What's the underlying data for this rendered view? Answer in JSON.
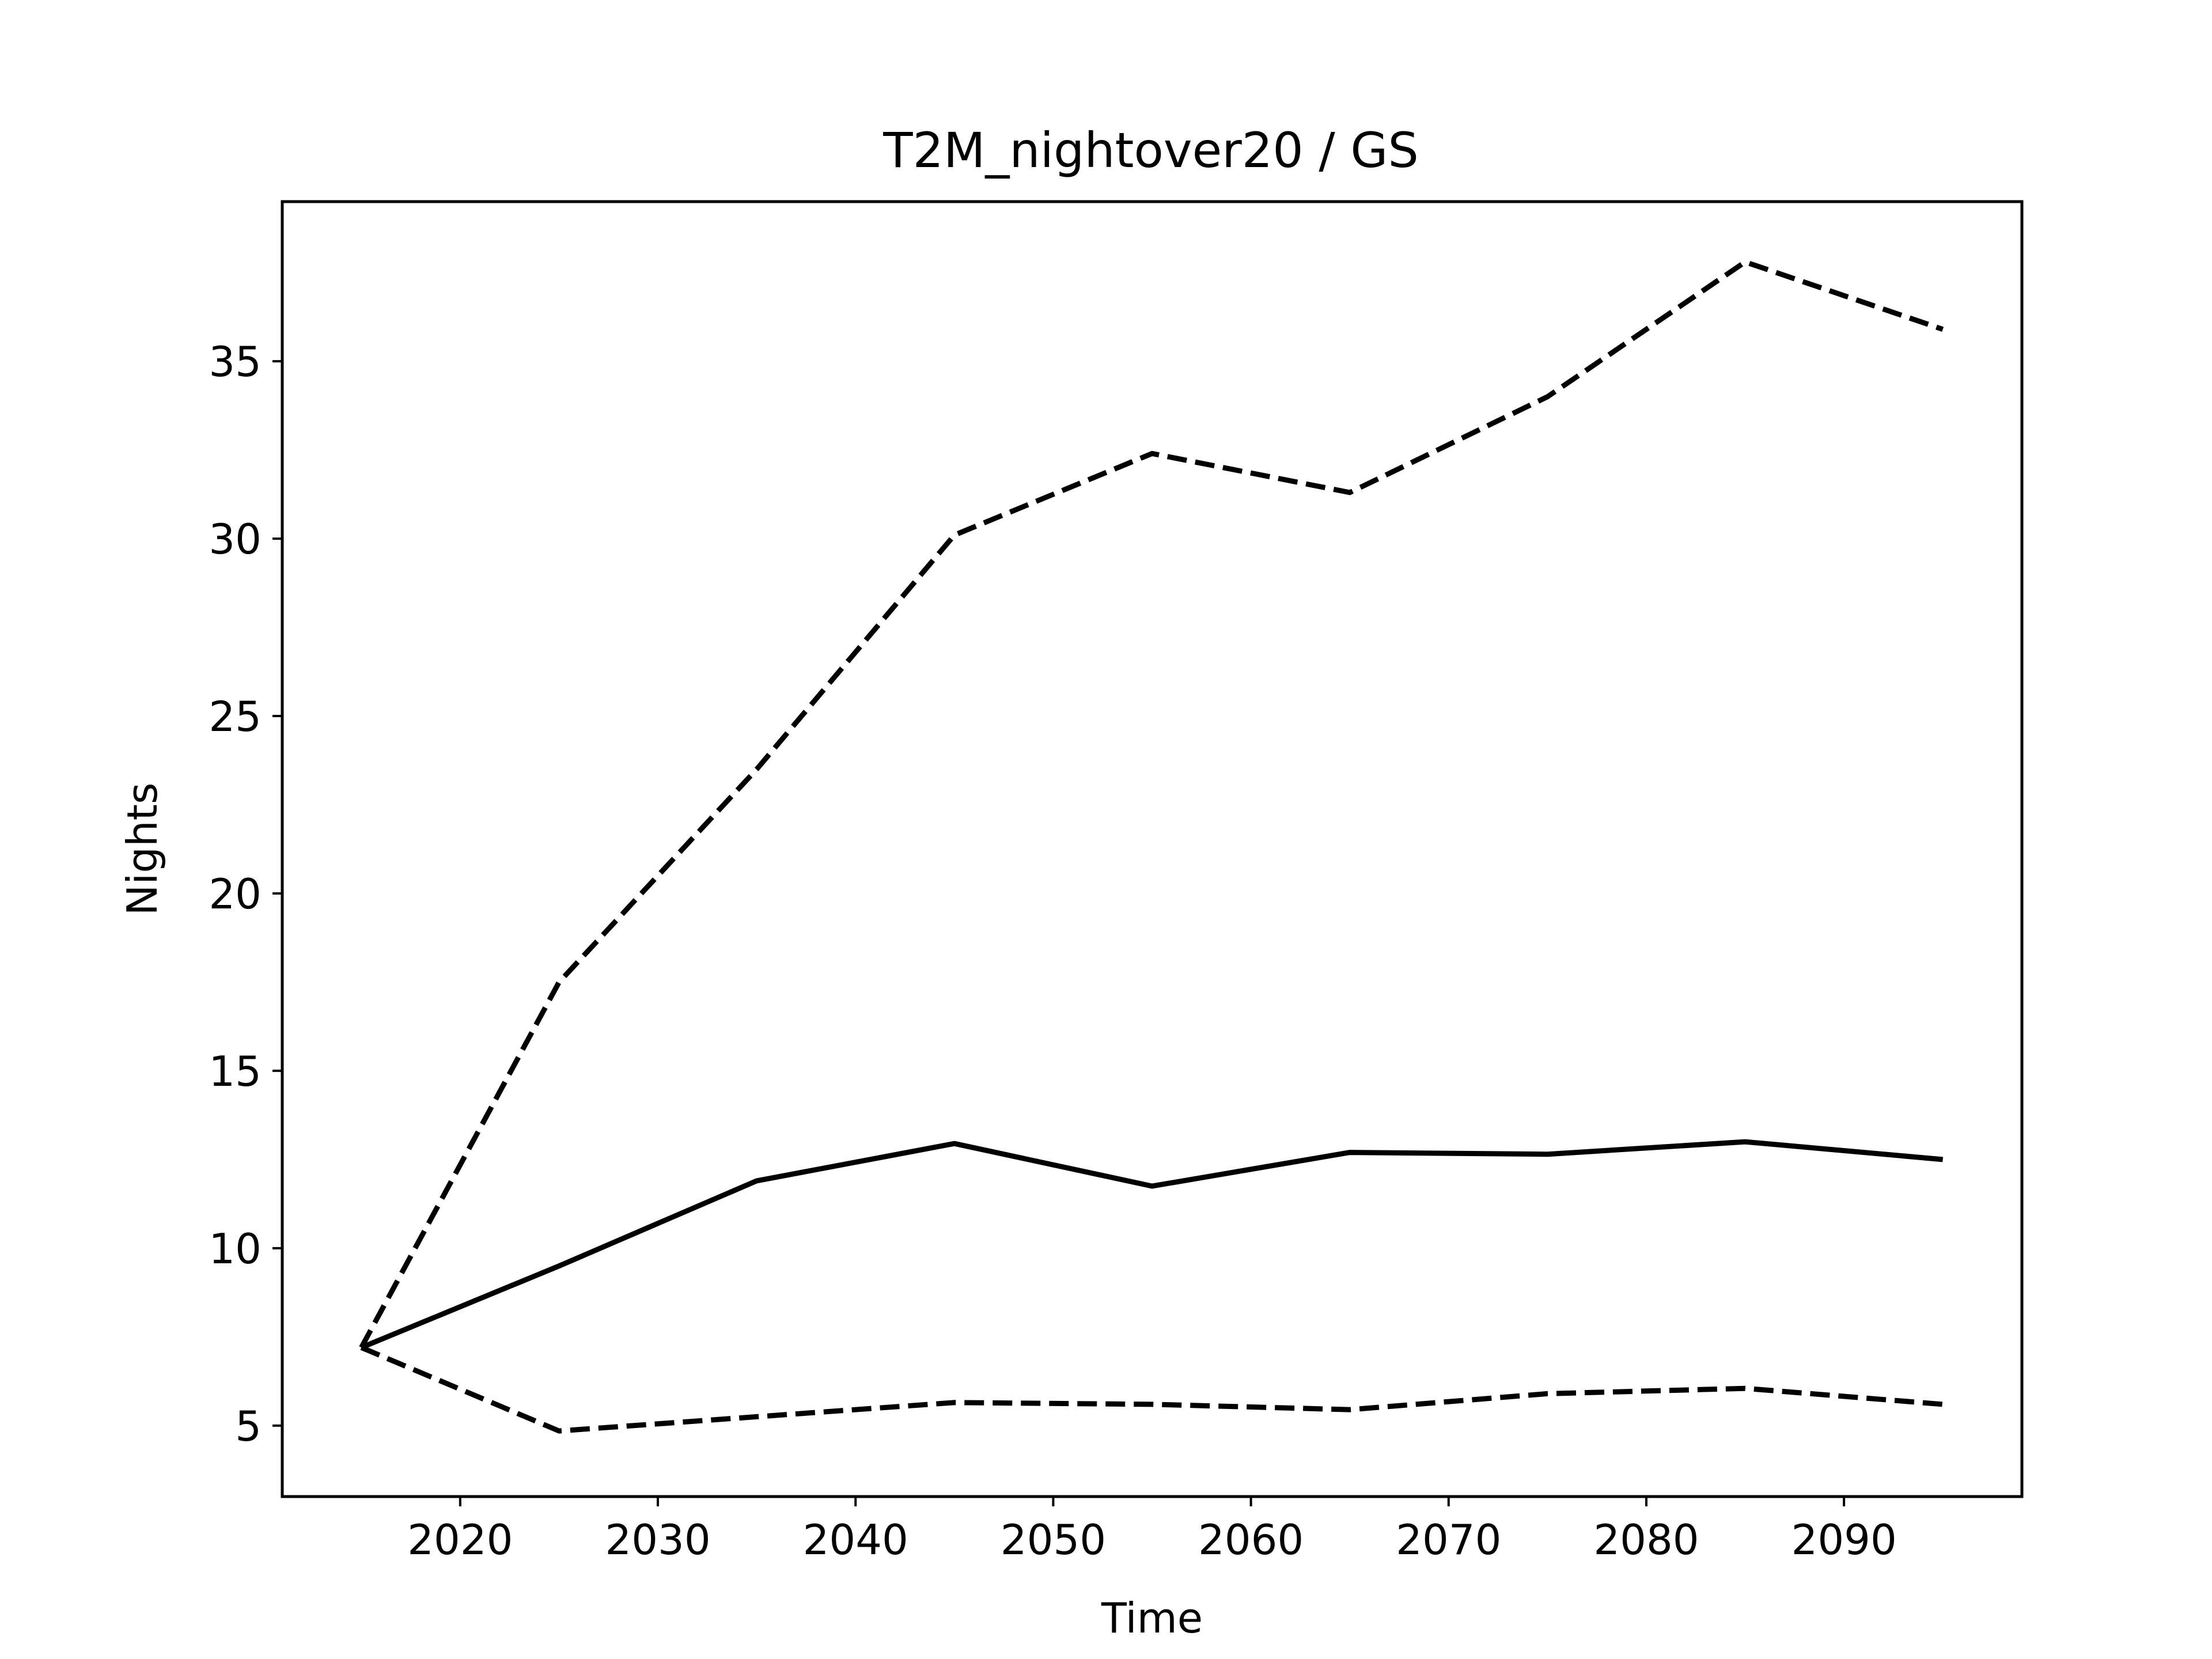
{
  "chart_data": {
    "type": "line",
    "title": "T2M_nightover20 / GS",
    "xlabel": "Time",
    "ylabel": "Nights",
    "xlim": [
      2011,
      2099
    ],
    "ylim": [
      3.0,
      39.5
    ],
    "x_ticks": [
      2020,
      2030,
      2040,
      2050,
      2060,
      2070,
      2080,
      2090
    ],
    "y_ticks": [
      5,
      10,
      15,
      20,
      25,
      30,
      35
    ],
    "x": [
      2015,
      2025,
      2035,
      2045,
      2055,
      2065,
      2075,
      2085,
      2095
    ],
    "grid": false,
    "legend": "none",
    "series": [
      {
        "style": "solid",
        "color": "#000000",
        "values": [
          7.2,
          9.5,
          11.9,
          12.95,
          11.75,
          12.7,
          12.65,
          13.0,
          12.5
        ]
      },
      {
        "style": "dashed",
        "color": "#000000",
        "values": [
          7.2,
          17.5,
          23.5,
          30.1,
          32.4,
          31.3,
          34.0,
          37.8,
          35.9
        ]
      },
      {
        "style": "dashed",
        "color": "#000000",
        "values": [
          7.2,
          4.85,
          5.25,
          5.65,
          5.6,
          5.45,
          5.9,
          6.05,
          5.6
        ]
      }
    ]
  }
}
